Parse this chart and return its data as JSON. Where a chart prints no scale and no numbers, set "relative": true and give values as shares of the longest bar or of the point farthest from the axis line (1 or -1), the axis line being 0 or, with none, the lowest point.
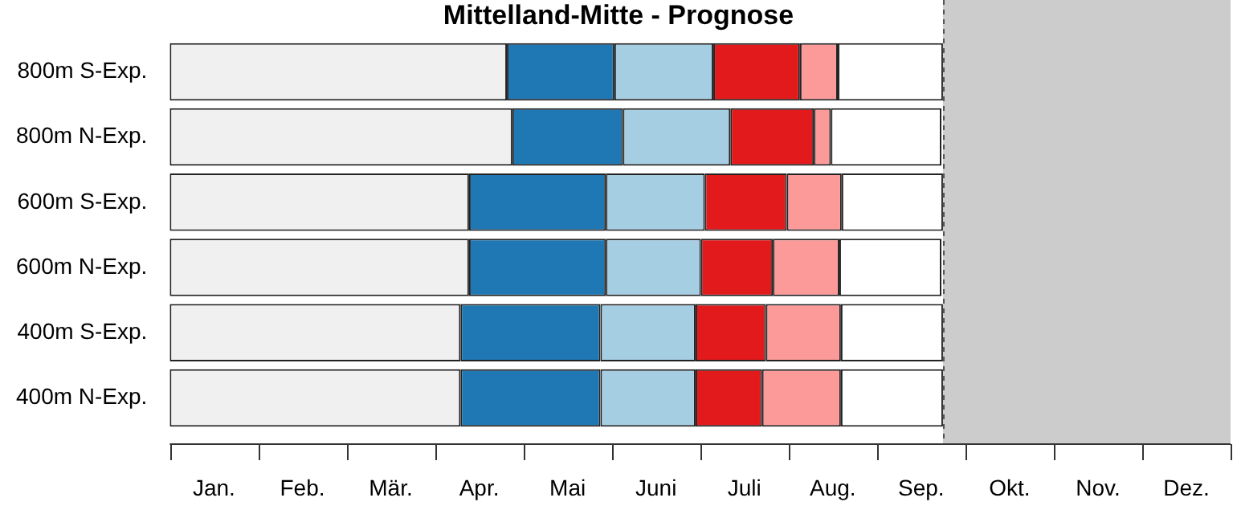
{
  "chart_data": {
    "type": "bar",
    "orientation": "horizontal",
    "stacked": true,
    "relative": true,
    "title": "Mittelland-Mitte - Prognose",
    "categories": [
      "800m S-Exp.",
      "800m N-Exp.",
      "600m S-Exp.",
      "600m N-Exp.",
      "400m S-Exp.",
      "400m N-Exp."
    ],
    "series": [
      {
        "color": "#f0f0f0",
        "values": [
          0.436,
          0.443,
          0.387,
          0.387,
          0.376,
          0.376
        ]
      },
      {
        "color": "#1f78b4",
        "values": [
          0.139,
          0.143,
          0.177,
          0.177,
          0.181,
          0.181
        ]
      },
      {
        "color": "#a6cee3",
        "values": [
          0.128,
          0.139,
          0.128,
          0.123,
          0.123,
          0.123
        ]
      },
      {
        "color": "#e31a1c",
        "values": [
          0.112,
          0.108,
          0.106,
          0.093,
          0.091,
          0.086
        ]
      },
      {
        "color": "#fb9a99",
        "values": [
          0.049,
          0.022,
          0.071,
          0.086,
          0.097,
          0.102
        ]
      },
      {
        "color": "#ffffff",
        "values": [
          0.136,
          0.143,
          0.131,
          0.132,
          0.132,
          0.132
        ]
      }
    ],
    "bands": [
      {
        "axis": "x",
        "from": 1,
        "to": 1.372,
        "color": "#cccccc"
      }
    ],
    "ref_lines": [
      {
        "axis": "x",
        "value": 1,
        "color": "#555555",
        "line_style": "dashed"
      }
    ],
    "annotations": [
      "Jan.",
      "Feb.",
      "Mär.",
      "Apr.",
      "Mai",
      "Juni",
      "Juli",
      "Aug.",
      "Sep.",
      "Okt.",
      "Nov.",
      "Dez."
    ],
    "legend": false
  }
}
